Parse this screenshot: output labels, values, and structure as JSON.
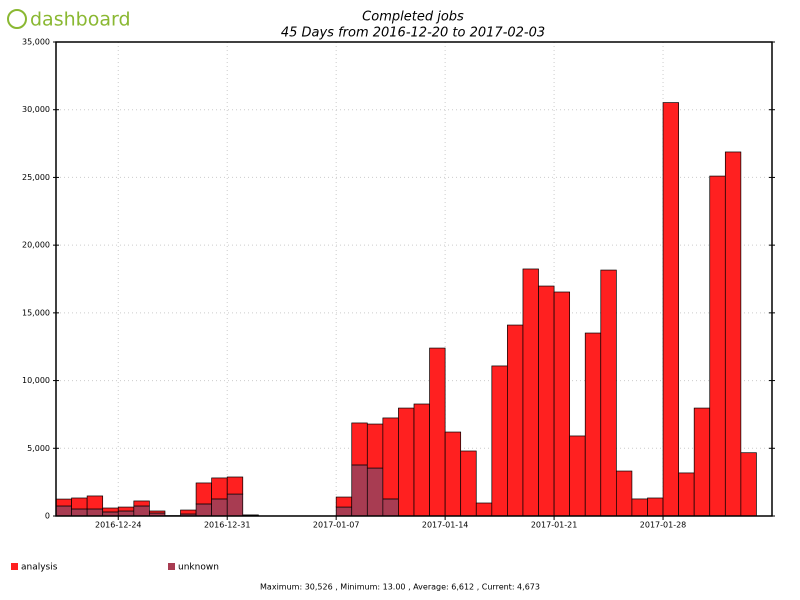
{
  "logo": "dashboard",
  "footer": "Maximum: 30,526 , Minimum: 13.00 , Average: 6,612 , Current: 4,673",
  "chart_data": {
    "type": "bar",
    "stacked": true,
    "grid": true,
    "title": "Completed jobs",
    "subtitle": "45 Days from 2016-12-20 to 2017-02-03",
    "categories": [
      null,
      null,
      null,
      null,
      "2016-12-24",
      null,
      null,
      null,
      null,
      null,
      null,
      "2016-12-31",
      null,
      null,
      null,
      null,
      null,
      null,
      "2017-01-07",
      null,
      null,
      null,
      null,
      null,
      null,
      "2017-01-14",
      null,
      null,
      null,
      null,
      null,
      null,
      "2017-01-21",
      null,
      null,
      null,
      null,
      null,
      null,
      "2017-01-28",
      null,
      null,
      null,
      null,
      null
    ],
    "series": [
      {
        "name": "analysis",
        "color": "#ff2020",
        "values": [
          510,
          810,
          960,
          290,
          290,
          370,
          150,
          20,
          290,
          1550,
          1550,
          1260,
          20,
          13,
          13,
          13,
          13,
          13,
          740,
          3100,
          3250,
          5980,
          7970,
          8270,
          12400,
          6200,
          4800,
          960,
          11080,
          14100,
          18240,
          16980,
          16540,
          5910,
          13510,
          18160,
          3320,
          1260,
          1330,
          30526,
          3180,
          7970,
          25100,
          26880,
          4673
        ]
      },
      {
        "name": "unknown",
        "color": "#a83c52",
        "values": [
          740,
          520,
          520,
          300,
          370,
          740,
          220,
          10,
          150,
          890,
          1260,
          1620,
          60,
          0,
          0,
          0,
          0,
          0,
          660,
          3770,
          3540,
          1260,
          0,
          0,
          0,
          0,
          0,
          0,
          0,
          0,
          0,
          0,
          0,
          0,
          0,
          0,
          0,
          0,
          0,
          0,
          0,
          0,
          0,
          0,
          0
        ]
      }
    ],
    "ylim": [
      0,
      35000
    ],
    "yticks": [
      0,
      {
        "value": 5000,
        "label": "5,000"
      },
      {
        "value": 10000,
        "label": "10,000"
      },
      {
        "value": 15000,
        "label": "15,000"
      },
      {
        "value": 20000,
        "label": "20,000"
      },
      {
        "value": 25000,
        "label": "25,000"
      },
      {
        "value": 30000,
        "label": "30,000"
      },
      {
        "value": 35000,
        "label": "35,000"
      }
    ]
  }
}
